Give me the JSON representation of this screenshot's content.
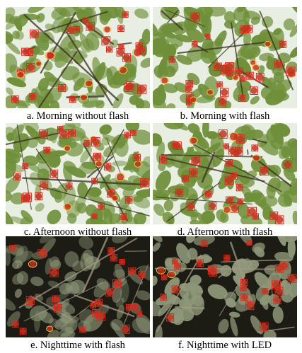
{
  "panels": [
    {
      "caption": "a. Morning without flash",
      "scene": "day"
    },
    {
      "caption": "b. Morning with flash",
      "scene": "day-bright"
    },
    {
      "caption": "c. Afternoon without flash",
      "scene": "day-warm"
    },
    {
      "caption": "d. Afternoon with flash",
      "scene": "day-bright"
    },
    {
      "caption": "e. Nighttime with flash",
      "scene": "night"
    },
    {
      "caption": "f. Nighttime with LED",
      "scene": "night-led"
    }
  ],
  "colors": {
    "box": "#e8231c",
    "ellipse": "#f2c23a",
    "fruit": "#c4321f",
    "leaf_day": "#6f8f3a",
    "sky": "#e8efe2",
    "night_bg": "#1c1b14",
    "night_leaf": "#8e9778"
  }
}
